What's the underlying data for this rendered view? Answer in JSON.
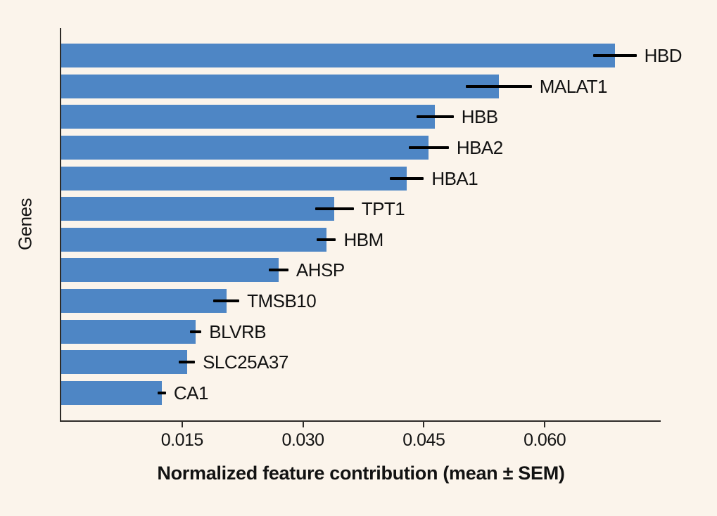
{
  "figure": {
    "background": "#fbf4eb",
    "axis_color": "#2e2b28",
    "text_color": "#121212"
  },
  "chart_data": {
    "type": "bar",
    "orientation": "horizontal",
    "title": "",
    "xlabel": "Normalized feature contribution (mean ± SEM)",
    "ylabel": "Genes",
    "categories": [
      "HBD",
      "MALAT1",
      "HBB",
      "HBA2",
      "HBA1",
      "TPT1",
      "HBM",
      "AHSP",
      "TMSB10",
      "BLVRB",
      "SLC25A37",
      "CA1"
    ],
    "values": [
      0.0687,
      0.0543,
      0.0464,
      0.0456,
      0.0429,
      0.0339,
      0.0329,
      0.027,
      0.0205,
      0.0167,
      0.0156,
      0.0125
    ],
    "sem": [
      0.0027,
      0.0041,
      0.0023,
      0.0025,
      0.0021,
      0.0024,
      0.0012,
      0.0012,
      0.0016,
      0.0007,
      0.001,
      0.0005
    ],
    "error_bar": "mean ± SEM",
    "xlim": [
      0,
      0.0744
    ],
    "xticks": [
      0.015,
      0.03,
      0.045,
      0.06
    ],
    "xtick_labels": [
      "0.015",
      "0.030",
      "0.045",
      "0.060"
    ],
    "grid": false,
    "legend": null,
    "bar_color": "#4e86c5",
    "error_color": "#000000"
  }
}
